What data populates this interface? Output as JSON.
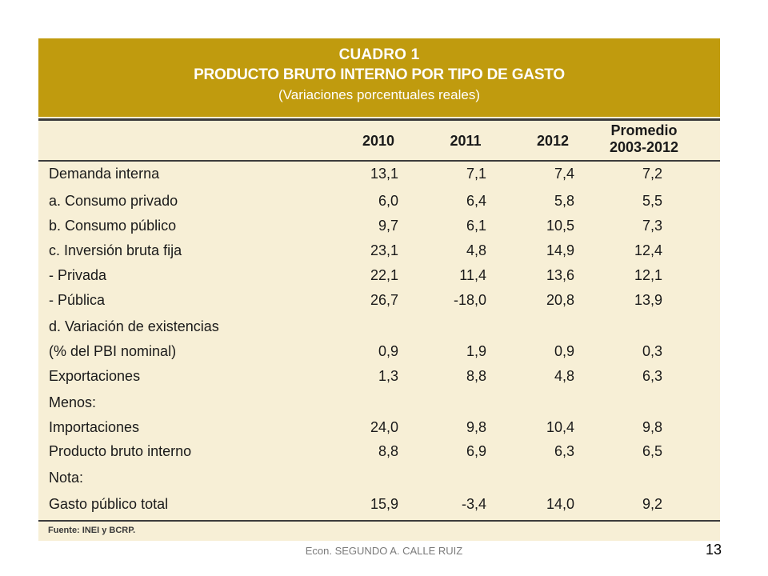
{
  "table": {
    "title": "CUADRO 1",
    "subtitle": "PRODUCTO BRUTO INTERNO POR TIPO DE GASTO",
    "note": "(Variaciones porcentuales reales)",
    "columns": {
      "y2010": "2010",
      "y2011": "2011",
      "y2012": "2012",
      "avg_line1": "Promedio",
      "avg_line2": "2003-2012"
    },
    "rows": [
      {
        "label": "Demanda interna",
        "v": [
          "13,1",
          "7,1",
          "7,4",
          "7,2"
        ]
      },
      {
        "label": "a. Consumo privado",
        "v": [
          "6,0",
          "6,4",
          "5,8",
          "5,5"
        ]
      },
      {
        "label": "b. Consumo público",
        "v": [
          "9,7",
          "6,1",
          "10,5",
          "7,3"
        ]
      },
      {
        "label": "c. Inversión bruta fija",
        "v": [
          "23,1",
          "4,8",
          "14,9",
          "12,4"
        ]
      },
      {
        "label": "- Privada",
        "v": [
          "22,1",
          "11,4",
          "13,6",
          "12,1"
        ]
      },
      {
        "label": "- Pública",
        "v": [
          "26,7",
          "-18,0",
          "20,8",
          "13,9"
        ]
      },
      {
        "label": "d. Variación de existencias",
        "v": [
          "",
          "",
          "",
          ""
        ]
      },
      {
        "label": "(% del PBI nominal)",
        "v": [
          "0,9",
          "1,9",
          "0,9",
          "0,3"
        ]
      },
      {
        "label": "Exportaciones",
        "v": [
          "1,3",
          "8,8",
          "4,8",
          "6,3"
        ]
      },
      {
        "label": "Menos:",
        "v": [
          "",
          "",
          "",
          ""
        ]
      },
      {
        "label": "Importaciones",
        "v": [
          "24,0",
          "9,8",
          "10,4",
          "9,8"
        ]
      },
      {
        "label": "Producto bruto interno",
        "v": [
          "8,8",
          "6,9",
          "6,3",
          "6,5"
        ]
      },
      {
        "label": "Nota:",
        "v": [
          "",
          "",
          "",
          ""
        ]
      },
      {
        "label": "Gasto público total",
        "v": [
          "15,9",
          "-3,4",
          "14,0",
          "9,2"
        ]
      }
    ],
    "source": "Fuente: INEI y BCRP."
  },
  "footer": {
    "author": "Econ. SEGUNDO A. CALLE RUIZ",
    "page_number": "13"
  },
  "colors": {
    "title_band": "#c09b0e",
    "table_background": "#f7efd6",
    "rule": "#3c3c3c"
  }
}
